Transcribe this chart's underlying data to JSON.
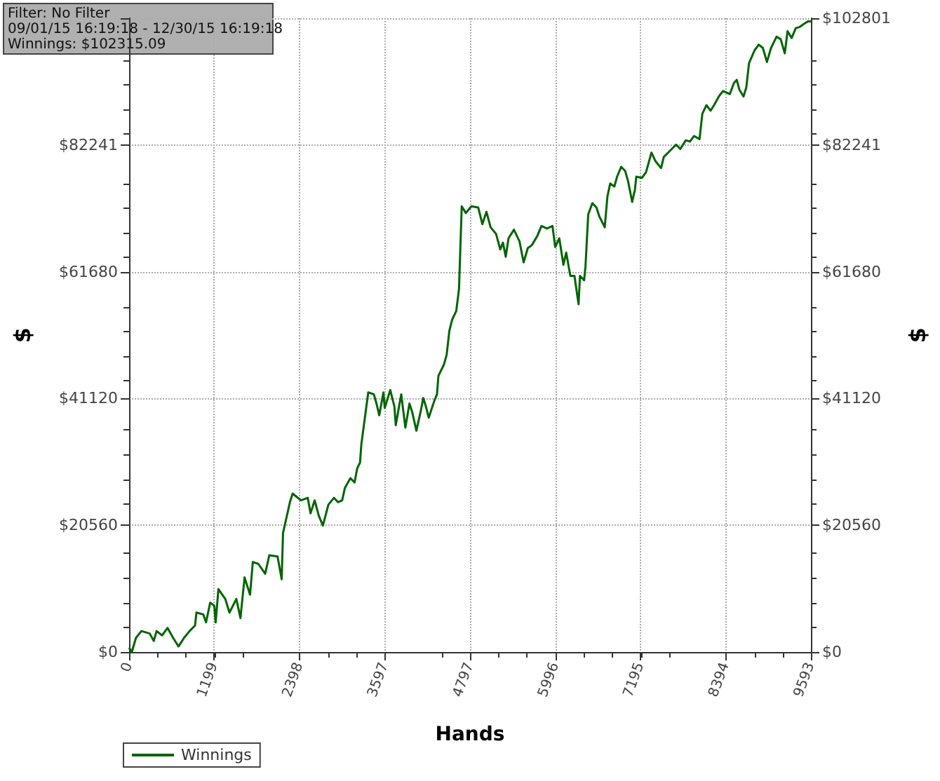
{
  "chart_data": {
    "type": "line",
    "xlabel": "Hands",
    "ylabel": "$",
    "y2label": "$",
    "annotations": [
      "Filter: No Filter",
      "09/01/15 16:19:18 - 12/30/15 16:19:18",
      "Winnings: $102315.09"
    ],
    "xlim": [
      0,
      9593
    ],
    "xticks": [
      0,
      1199,
      2398,
      3597,
      4797,
      5996,
      7195,
      8394,
      9593
    ],
    "ylim": [
      0,
      102801
    ],
    "yticks": [
      {
        "value": 0,
        "label": "$0"
      },
      {
        "value": 20560,
        "label": "$20560"
      },
      {
        "value": 41120,
        "label": "$41120"
      },
      {
        "value": 61680,
        "label": "$61680"
      },
      {
        "value": 82241,
        "label": "$82241"
      },
      {
        "value": 102801,
        "label": null
      }
    ],
    "y2lim": [
      0,
      102801
    ],
    "y2ticks": [
      {
        "value": 0,
        "label": "$0"
      },
      {
        "value": 20560,
        "label": "$20560"
      },
      {
        "value": 41120,
        "label": "$41120"
      },
      {
        "value": 61680,
        "label": "$61680"
      },
      {
        "value": 82241,
        "label": "$82241"
      },
      {
        "value": 102801,
        "label": "$102801"
      }
    ],
    "grid": true,
    "legend": "bottom left",
    "marker": "none",
    "line_style": "solid",
    "series": [
      {
        "name": "Winnings",
        "color": "#006400",
        "x": [
          0,
          39,
          97,
          174,
          290,
          348,
          387,
          464,
          542,
          619,
          696,
          774,
          851,
          928,
          948,
          1044,
          1083,
          1141,
          1199,
          1218,
          1257,
          1354,
          1412,
          1509,
          1567,
          1625,
          1702,
          1741,
          1818,
          1915,
          1973,
          2089,
          2147,
          2166,
          2263,
          2301,
          2418,
          2514,
          2553,
          2611,
          2669,
          2727,
          2804,
          2882,
          2940,
          2998,
          3036,
          3114,
          3172,
          3210,
          3249,
          3268,
          3365,
          3443,
          3481,
          3520,
          3578,
          3597,
          3675,
          3733,
          3752,
          3829,
          3887,
          3945,
          3984,
          4042,
          4100,
          4139,
          4177,
          4216,
          4293,
          4332,
          4352,
          4429,
          4468,
          4506,
          4545,
          4603,
          4642,
          4680,
          4738,
          4816,
          4912,
          4970,
          5028,
          5086,
          5164,
          5222,
          5260,
          5299,
          5338,
          5415,
          5493,
          5551,
          5609,
          5667,
          5744,
          5802,
          5879,
          5957,
          5995,
          6053,
          6111,
          6150,
          6208,
          6266,
          6324,
          6344,
          6402,
          6421,
          6460,
          6518,
          6576,
          6614,
          6692,
          6730,
          6769,
          6827,
          6866,
          6924,
          6981,
          7020,
          7078,
          7117,
          7136,
          7214,
          7272,
          7311,
          7349,
          7407,
          7485,
          7523,
          7601,
          7697,
          7755,
          7833,
          7891,
          7949,
          8026,
          8065,
          8123,
          8181,
          8220,
          8297,
          8355,
          8452,
          8510,
          8549,
          8587,
          8645,
          8684,
          8722,
          8800,
          8858,
          8916,
          8974,
          9032,
          9109,
          9167,
          9225,
          9264,
          9322,
          9380,
          9438,
          9496,
          9554,
          9593
        ],
        "values": [
          700,
          0,
          2300,
          3400,
          3000,
          1800,
          3400,
          2700,
          3900,
          2300,
          900,
          2300,
          3400,
          4300,
          6400,
          6100,
          4800,
          8000,
          7500,
          4800,
          10200,
          8600,
          6400,
          8600,
          5500,
          12100,
          9300,
          14600,
          14300,
          12700,
          15700,
          15500,
          11800,
          19300,
          24300,
          25700,
          24600,
          25000,
          22500,
          24600,
          22100,
          20500,
          23900,
          25000,
          24300,
          24600,
          26600,
          28200,
          27500,
          29800,
          30700,
          33700,
          42100,
          41800,
          40300,
          38400,
          42100,
          39600,
          42500,
          39800,
          36800,
          41800,
          36400,
          40300,
          38900,
          35900,
          38900,
          41200,
          39800,
          38000,
          40700,
          41800,
          44800,
          46600,
          48200,
          52100,
          53900,
          55300,
          58900,
          72300,
          71200,
          72300,
          72100,
          69400,
          71400,
          68900,
          67800,
          65300,
          66400,
          64100,
          67100,
          68500,
          66600,
          63200,
          65500,
          66000,
          67500,
          69100,
          68700,
          69100,
          65700,
          67100,
          62800,
          64800,
          61000,
          61000,
          56400,
          61000,
          60300,
          62500,
          71000,
          72800,
          72100,
          70700,
          68900,
          73900,
          76000,
          75500,
          77100,
          78700,
          78000,
          76400,
          73000,
          75000,
          77100,
          76900,
          77800,
          79400,
          81000,
          79600,
          78500,
          80300,
          81200,
          82300,
          81600,
          83000,
          82800,
          83700,
          83200,
          87300,
          88700,
          87800,
          88500,
          90100,
          91000,
          90500,
          92300,
          92800,
          91200,
          90100,
          91600,
          95500,
          97600,
          98500,
          98000,
          95700,
          98000,
          99800,
          99400,
          97100,
          100700,
          99600,
          101200,
          101400,
          101900,
          102300,
          102300
        ]
      }
    ]
  }
}
